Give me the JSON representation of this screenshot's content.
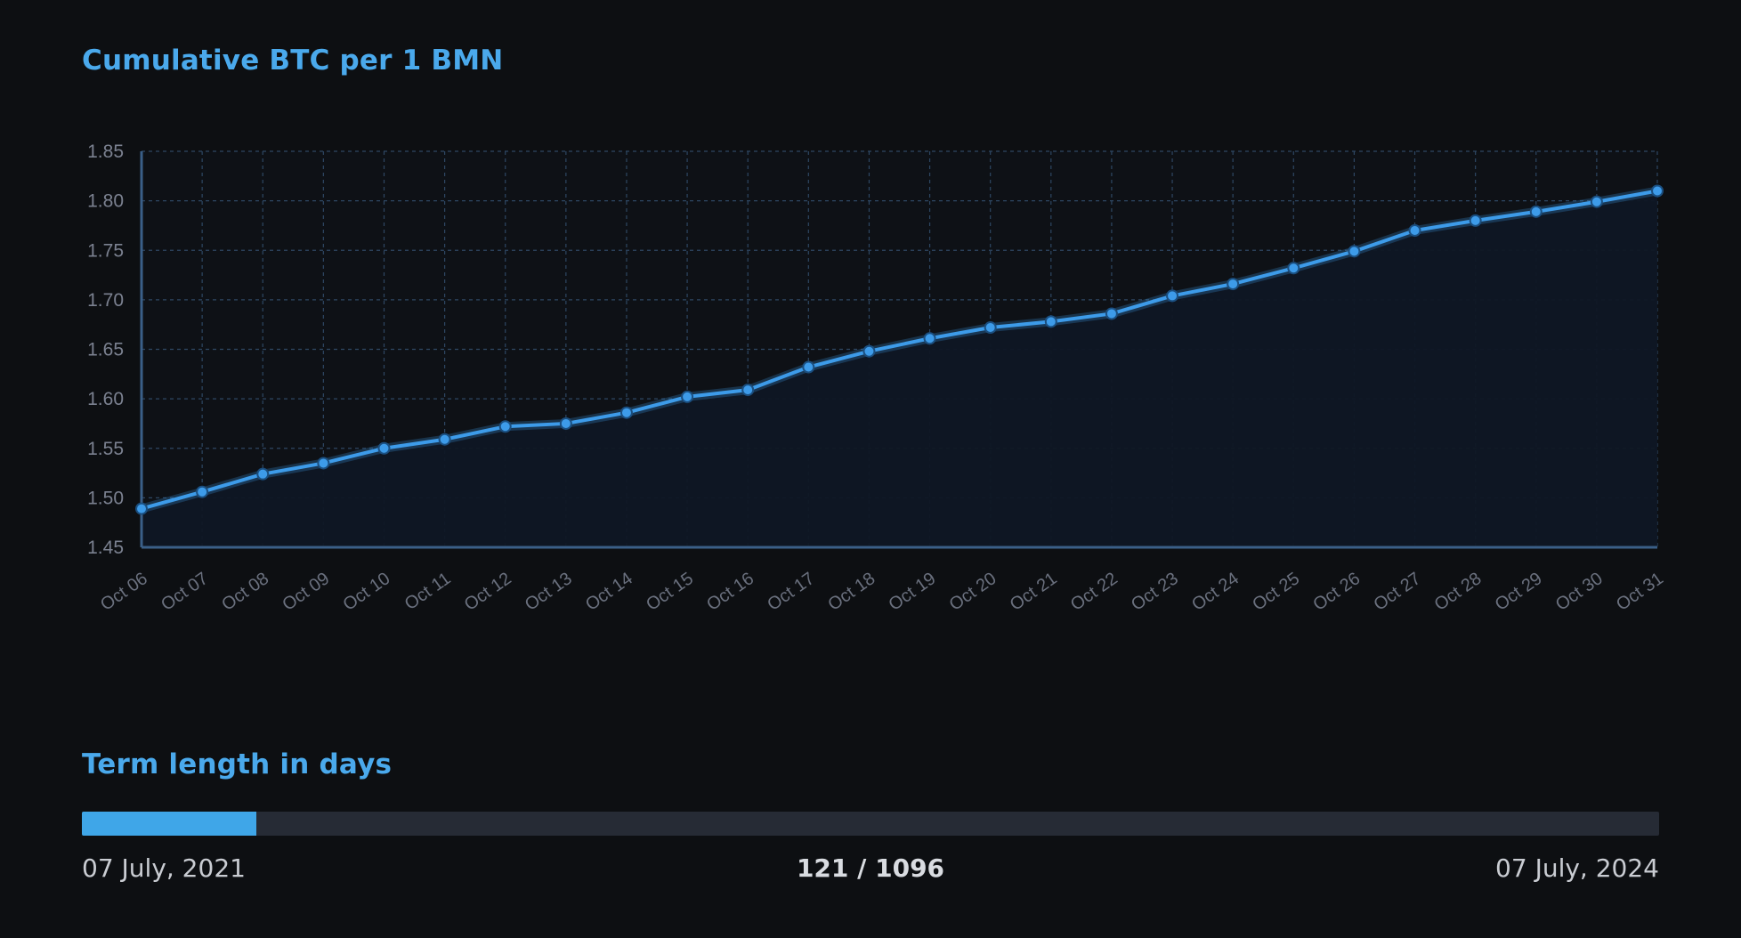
{
  "chart_title": "Cumulative BTC per 1 BMN",
  "chart_data": {
    "type": "area",
    "title": "Cumulative BTC per 1 BMN",
    "xlabel": "",
    "ylabel": "",
    "categories": [
      "Oct 06",
      "Oct 07",
      "Oct 08",
      "Oct 09",
      "Oct 10",
      "Oct 11",
      "Oct 12",
      "Oct 13",
      "Oct 14",
      "Oct 15",
      "Oct 16",
      "Oct 17",
      "Oct 18",
      "Oct 19",
      "Oct 20",
      "Oct 21",
      "Oct 22",
      "Oct 23",
      "Oct 24",
      "Oct 25",
      "Oct 26",
      "Oct 27",
      "Oct 28",
      "Oct 29",
      "Oct 30",
      "Oct 31"
    ],
    "values": [
      1.489,
      1.506,
      1.524,
      1.535,
      1.55,
      1.559,
      1.572,
      1.575,
      1.586,
      1.602,
      1.609,
      1.632,
      1.648,
      1.661,
      1.672,
      1.678,
      1.686,
      1.704,
      1.716,
      1.732,
      1.749,
      1.77,
      1.78,
      1.789,
      1.799,
      1.81
    ],
    "ylim": [
      1.45,
      1.85
    ],
    "yticks": [
      "1.85",
      "1.80",
      "1.75",
      "1.70",
      "1.65",
      "1.60",
      "1.55",
      "1.50",
      "1.45"
    ],
    "grid": true,
    "colors": {
      "line": "#3d9be9",
      "fill": "#0f1724",
      "grid": "#2e4763",
      "axis": "#3a5f88"
    }
  },
  "term": {
    "title": "Term length in days",
    "current_day": 121,
    "total_days": 1096,
    "progress_text": "121 / 1096",
    "start_date": "07 July, 2021",
    "end_date": "07 July, 2024",
    "fill_color": "#3fa6e8"
  }
}
